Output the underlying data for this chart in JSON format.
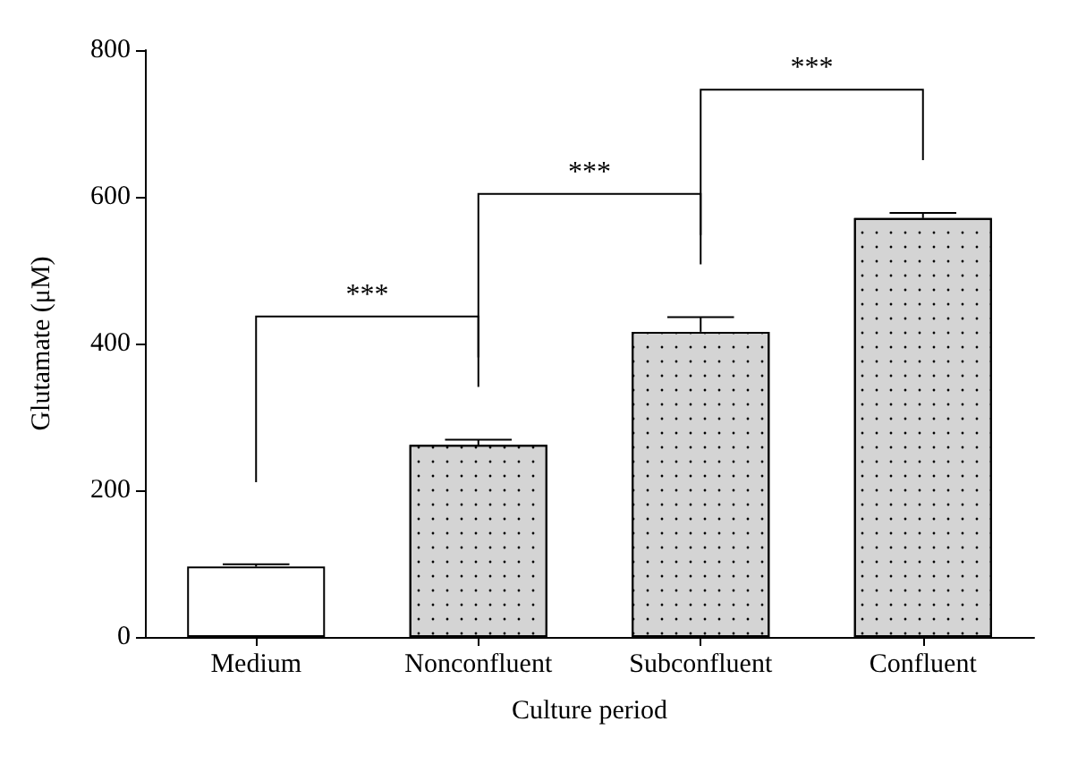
{
  "chart_data": {
    "type": "bar",
    "xlabel": "Culture period",
    "ylabel": "Glutamate (μM)",
    "categories": [
      "Medium",
      "Nonconfluent",
      "Subconfluent",
      "Confluent"
    ],
    "values": [
      96,
      262,
      416,
      571
    ],
    "errors": [
      3,
      7,
      20,
      7
    ],
    "colors": [
      "#ffffff",
      "#d4d4d4",
      "#d4d4d4",
      "#d4d4d4"
    ],
    "ylim": [
      0,
      800
    ],
    "yticks": [
      0,
      200,
      400,
      600,
      800
    ],
    "grid": false,
    "annotations": [
      "***",
      "***",
      "***"
    ]
  }
}
